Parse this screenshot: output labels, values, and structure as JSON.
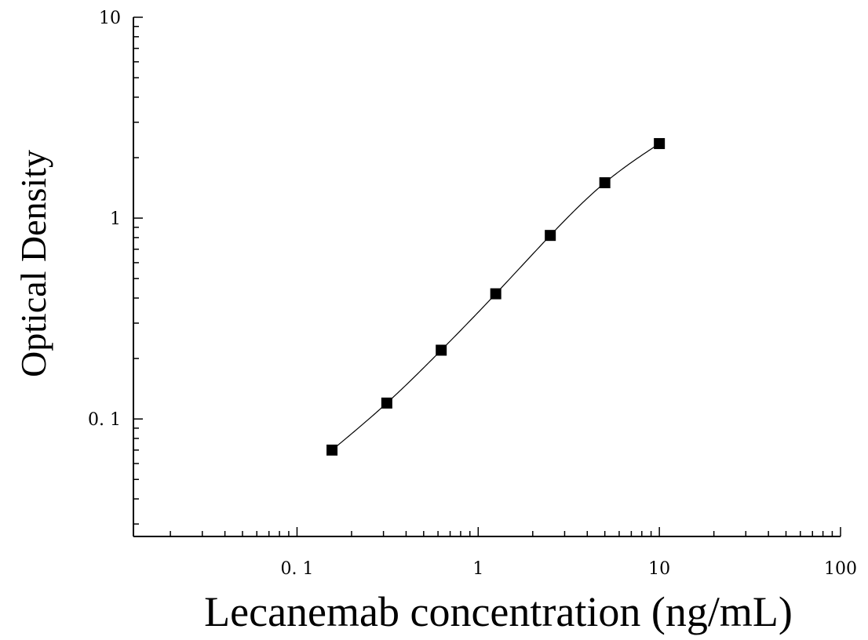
{
  "chart_data": {
    "type": "scatter",
    "xlabel": "Lecanemab concentration (ng/mL)",
    "ylabel": "Optical Density",
    "xscale": "log",
    "yscale": "log",
    "xlim": [
      0.0125,
      100
    ],
    "ylim": [
      0.026,
      10
    ],
    "x_ticks": [
      0.1,
      1,
      10,
      100
    ],
    "x_tick_labels": [
      "0. 1",
      "1",
      "10",
      "100"
    ],
    "y_ticks": [
      0.1,
      1,
      10
    ],
    "y_tick_labels": [
      "0. 1",
      "1",
      "10"
    ],
    "grid": false,
    "series": [
      {
        "x": [
          0.156,
          0.313,
          0.625,
          1.25,
          2.5,
          5,
          10
        ],
        "y": [
          0.07,
          0.12,
          0.22,
          0.42,
          0.82,
          1.5,
          2.35
        ],
        "marker": "square",
        "fit_line": true
      }
    ],
    "colors": {
      "marker": "#000000",
      "line": "#000000",
      "axis": "#000000"
    }
  }
}
